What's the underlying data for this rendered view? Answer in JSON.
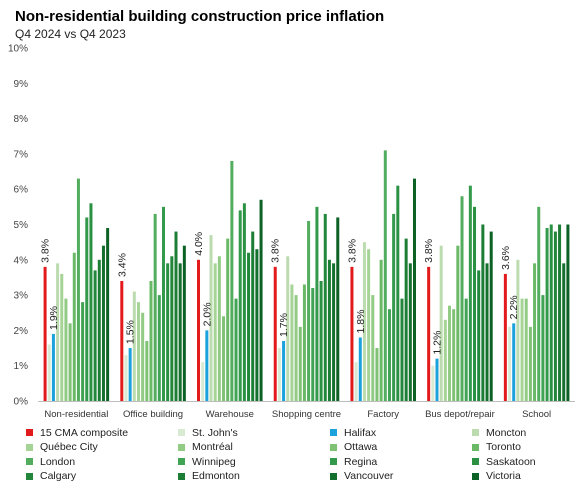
{
  "chart_data": {
    "type": "bar",
    "title": "Non-residential building construction price inflation",
    "subtitle": "Q4 2024 vs Q4 2023",
    "xlabel": "",
    "ylabel": "",
    "ylim": [
      0,
      10
    ],
    "yticks": [
      "0%",
      "1%",
      "2%",
      "3%",
      "4%",
      "5%",
      "6%",
      "7%",
      "8%",
      "9%",
      "10%"
    ],
    "grid": false,
    "legend_position": "bottom",
    "categories": [
      "Non-residential",
      "Office building",
      "Warehouse",
      "Shopping centre",
      "Factory",
      "Bus depot/repair",
      "School"
    ],
    "series": [
      {
        "name": "15 CMA composite",
        "color": "#e31a1c",
        "values": [
          3.8,
          3.4,
          4.0,
          3.8,
          3.8,
          3.8,
          3.6
        ],
        "labels": [
          "3.8%",
          "3.4%",
          "4.0%",
          "3.8%",
          "3.8%",
          "3.8%",
          "3.6%"
        ]
      },
      {
        "name": "St. John's",
        "color": "#d9ead3",
        "values": [
          1.6,
          1.3,
          1.1,
          1.5,
          1.1,
          1.0,
          2.1
        ]
      },
      {
        "name": "Halifax",
        "color": "#1ba1dc",
        "values": [
          1.9,
          1.5,
          2.0,
          1.7,
          1.8,
          1.2,
          2.2
        ],
        "labels": [
          "1.9%",
          "1.5%",
          "2.0%",
          "1.7%",
          "1.8%",
          "1.2%",
          "2.2%"
        ]
      },
      {
        "name": "Moncton",
        "color": "#bcdcb0",
        "values": [
          3.9,
          3.1,
          4.7,
          4.1,
          4.5,
          4.4,
          4.0
        ]
      },
      {
        "name": "Québec City",
        "color": "#a6d496",
        "values": [
          3.6,
          2.8,
          3.9,
          3.3,
          4.3,
          2.3,
          2.9
        ]
      },
      {
        "name": "Montréal",
        "color": "#92cb84",
        "values": [
          2.9,
          2.5,
          4.1,
          3.0,
          3.0,
          2.7,
          2.9
        ]
      },
      {
        "name": "Ottawa",
        "color": "#7fc274",
        "values": [
          2.2,
          1.7,
          2.4,
          2.1,
          1.5,
          2.6,
          2.1
        ]
      },
      {
        "name": "Toronto",
        "color": "#6ab967",
        "values": [
          4.2,
          3.4,
          4.6,
          3.3,
          4.0,
          4.4,
          3.9
        ]
      },
      {
        "name": "London",
        "color": "#52ad5e",
        "values": [
          6.3,
          5.3,
          6.8,
          5.1,
          7.1,
          5.8,
          5.5
        ]
      },
      {
        "name": "Winnipeg",
        "color": "#41a354",
        "values": [
          2.8,
          3.0,
          2.9,
          3.2,
          2.6,
          2.9,
          3.0
        ]
      },
      {
        "name": "Regina",
        "color": "#339a4b",
        "values": [
          5.2,
          5.5,
          5.4,
          5.5,
          5.3,
          6.1,
          4.9
        ]
      },
      {
        "name": "Saskatoon",
        "color": "#2a9143",
        "values": [
          5.6,
          3.9,
          5.6,
          3.4,
          6.1,
          5.5,
          5.0
        ]
      },
      {
        "name": "Calgary",
        "color": "#22873b",
        "values": [
          3.7,
          4.1,
          4.2,
          5.3,
          2.9,
          3.7,
          4.8
        ]
      },
      {
        "name": "Edmonton",
        "color": "#1c7d35",
        "values": [
          4.0,
          4.8,
          4.8,
          4.0,
          4.6,
          5.0,
          5.0
        ]
      },
      {
        "name": "Vancouver",
        "color": "#14702d",
        "values": [
          4.4,
          3.9,
          4.3,
          3.9,
          3.9,
          3.9,
          3.9
        ]
      },
      {
        "name": "Victoria",
        "color": "#0c6125",
        "values": [
          4.9,
          4.4,
          5.7,
          5.2,
          6.3,
          4.8,
          5.0
        ]
      }
    ]
  }
}
